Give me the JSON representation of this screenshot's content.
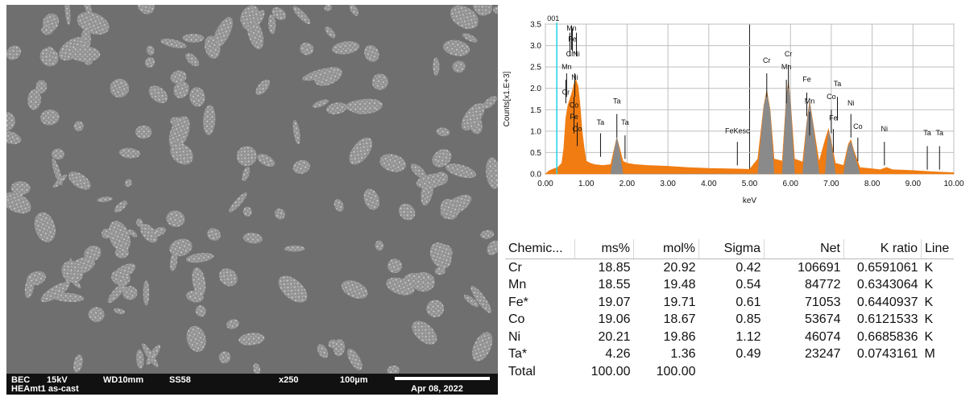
{
  "sem": {
    "label_mode": "BEC",
    "label_kv": "15kV",
    "label_wd": "WD10mm",
    "label_ss": "SS58",
    "label_mag": "x250",
    "label_scale": "100µm",
    "label_sample": "HEAmt1 as-cast",
    "label_date": "Apr 08, 2022"
  },
  "chart_data": {
    "type": "area",
    "title": "",
    "xlabel": "keV",
    "ylabel": "Counts[x1.E+3]",
    "xlim": [
      0,
      10
    ],
    "ylim": [
      0,
      3.5
    ],
    "xticks": [
      "0.00",
      "1.00",
      "2.00",
      "3.00",
      "4.00",
      "5.00",
      "6.00",
      "7.00",
      "8.00",
      "9.00",
      "10.00"
    ],
    "yticks": [
      "0.0",
      "0.5",
      "1.0",
      "1.5",
      "2.0",
      "2.5",
      "3.0",
      "3.5"
    ],
    "grid": true,
    "marker_label": "001",
    "marker_x": 0.28,
    "series": [
      {
        "color": "#f07c12",
        "x": [
          0.0,
          0.1,
          0.2,
          0.3,
          0.4,
          0.45,
          0.5,
          0.55,
          0.6,
          0.65,
          0.7,
          0.75,
          0.8,
          0.85,
          0.9,
          0.95,
          1.0,
          1.1,
          1.2,
          1.4,
          1.6,
          1.75,
          1.9,
          2.0,
          2.2,
          2.5,
          3.0,
          3.5,
          4.0,
          4.5,
          5.0,
          5.2,
          5.35,
          5.42,
          5.5,
          5.6,
          5.8,
          5.9,
          5.95,
          6.0,
          6.1,
          6.3,
          6.4,
          6.47,
          6.55,
          6.7,
          6.85,
          6.93,
          7.0,
          7.1,
          7.3,
          7.42,
          7.48,
          7.55,
          7.7,
          8.0,
          8.2,
          8.35,
          8.5,
          9.0,
          9.5,
          10.0
        ],
        "y": [
          0.0,
          0.08,
          0.12,
          0.15,
          0.25,
          0.6,
          1.3,
          1.6,
          1.75,
          1.9,
          2.1,
          2.2,
          2.05,
          1.6,
          1.0,
          0.6,
          0.3,
          0.25,
          0.22,
          0.2,
          0.22,
          0.85,
          0.3,
          0.25,
          0.22,
          0.2,
          0.18,
          0.15,
          0.13,
          0.12,
          0.11,
          0.35,
          1.6,
          1.95,
          1.5,
          0.35,
          0.3,
          1.8,
          2.15,
          1.7,
          0.35,
          0.28,
          1.2,
          1.7,
          1.2,
          0.28,
          0.8,
          1.05,
          0.75,
          0.25,
          0.2,
          0.7,
          0.8,
          0.55,
          0.15,
          0.12,
          0.1,
          0.15,
          0.1,
          0.08,
          0.05,
          0.03
        ]
      },
      {
        "color": "#8a8a8a",
        "x": [
          1.6,
          1.7,
          1.75,
          1.8,
          1.9,
          5.2,
          5.35,
          5.42,
          5.5,
          5.6,
          5.8,
          5.9,
          5.95,
          6.0,
          6.1,
          6.3,
          6.4,
          6.47,
          6.55,
          6.7,
          6.85,
          6.93,
          7.0,
          7.1,
          7.3,
          7.42,
          7.48,
          7.55,
          7.7
        ],
        "y": [
          0.0,
          0.6,
          0.85,
          0.6,
          0.0,
          0.0,
          1.55,
          1.9,
          1.45,
          0.0,
          0.0,
          1.75,
          2.1,
          1.65,
          0.0,
          0.0,
          1.15,
          1.65,
          1.15,
          0.0,
          0.0,
          1.0,
          0.7,
          0.0,
          0.0,
          0.65,
          0.75,
          0.5,
          0.0
        ]
      }
    ],
    "peak_labels": [
      {
        "label": "Mn",
        "x": 0.64,
        "y": 3.35,
        "line_top": 3.45
      },
      {
        "label": "Fe",
        "x": 0.66,
        "y": 3.1,
        "line_top": 3.4
      },
      {
        "label": "Cr",
        "x": 0.6,
        "y": 2.75,
        "line_top": 3.3
      },
      {
        "label": "Ni",
        "x": 0.76,
        "y": 2.75,
        "line_top": 3.3
      },
      {
        "label": "Mn",
        "x": 0.52,
        "y": 2.45,
        "line_top": 2.35
      },
      {
        "label": "Ni",
        "x": 0.72,
        "y": 2.2,
        "line_top": 2.35
      },
      {
        "label": "Cr",
        "x": 0.5,
        "y": 1.85,
        "line_top": 2.2
      },
      {
        "label": "Co",
        "x": 0.7,
        "y": 1.55,
        "line_top": 1.8
      },
      {
        "label": "Fe",
        "x": 0.7,
        "y": 1.28,
        "line_top": 1.5
      },
      {
        "label": "Co",
        "x": 0.78,
        "y": 1.0,
        "line_top": 1.2
      },
      {
        "label": "Ta",
        "x": 1.35,
        "y": 1.15,
        "line_top": 0.95
      },
      {
        "label": "Ta",
        "x": 1.75,
        "y": 1.65,
        "line_top": 1.4
      },
      {
        "label": "Ta",
        "x": 1.95,
        "y": 1.15,
        "line_top": 0.9
      },
      {
        "label": "FeKesc",
        "x": 4.7,
        "y": 0.95,
        "line_top": 0.75
      },
      {
        "label": "Cr",
        "x": 5.42,
        "y": 2.6,
        "line_top": 2.35
      },
      {
        "label": "Cr",
        "x": 5.95,
        "y": 2.75,
        "line_top": 2.55
      },
      {
        "label": "Mn",
        "x": 5.9,
        "y": 2.45,
        "line_top": 2.2
      },
      {
        "label": "Fe",
        "x": 6.4,
        "y": 2.15,
        "line_top": 1.9
      },
      {
        "label": "Mn",
        "x": 6.47,
        "y": 1.65,
        "line_top": 1.45
      },
      {
        "label": "Ta",
        "x": 7.15,
        "y": 2.05,
        "line_top": 1.8
      },
      {
        "label": "Co",
        "x": 7.0,
        "y": 1.75,
        "line_top": 1.5
      },
      {
        "label": "Fe",
        "x": 7.05,
        "y": 1.25,
        "line_top": 1.05
      },
      {
        "label": "Ni",
        "x": 7.48,
        "y": 1.6,
        "line_top": 1.4
      },
      {
        "label": "Co",
        "x": 7.65,
        "y": 1.05,
        "line_top": 0.85
      },
      {
        "label": "Ni",
        "x": 8.3,
        "y": 1.0,
        "line_top": 0.75
      },
      {
        "label": "Ta",
        "x": 9.35,
        "y": 0.9,
        "line_top": 0.65
      },
      {
        "label": "Ta",
        "x": 9.65,
        "y": 0.9,
        "line_top": 0.65
      }
    ]
  },
  "table": {
    "headers": [
      "Chemic...",
      "ms%",
      "mol%",
      "Sigma",
      "Net",
      "K ratio",
      "Line"
    ],
    "rows": [
      [
        "Cr",
        "18.85",
        "20.92",
        "0.42",
        "106691",
        "0.6591061",
        "K"
      ],
      [
        "Mn",
        "18.55",
        "19.48",
        "0.54",
        "84772",
        "0.6343064",
        "K"
      ],
      [
        "Fe*",
        "19.07",
        "19.71",
        "0.61",
        "71053",
        "0.6440937",
        "K"
      ],
      [
        "Co",
        "19.06",
        "18.67",
        "0.85",
        "53674",
        "0.6121533",
        "K"
      ],
      [
        "Ni",
        "20.21",
        "19.86",
        "1.12",
        "46074",
        "0.6685836",
        "K"
      ],
      [
        "Ta*",
        "4.26",
        "1.36",
        "0.49",
        "23247",
        "0.0743161",
        "M"
      ],
      [
        "Total",
        "100.00",
        "100.00",
        "",
        "",
        "",
        ""
      ]
    ]
  }
}
